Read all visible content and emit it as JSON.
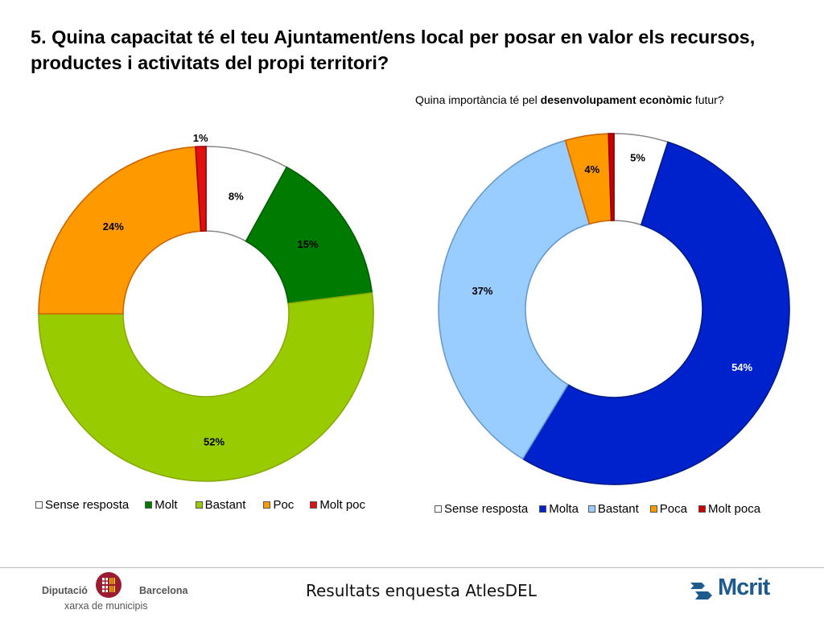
{
  "title": "5. Quina capacitat té el teu Ajuntament/ens local per posar en valor els recursos, productes i activitats del propi territori?",
  "subtitle": {
    "prefix": "Quina importància té pel ",
    "bold": "desenvolupament econòmic",
    "suffix": " futur?"
  },
  "chart_data": [
    {
      "type": "pie",
      "donut": true,
      "title": "",
      "categories": [
        "Sense resposta",
        "Molt",
        "Bastant",
        "Poc",
        "Molt poc"
      ],
      "values": [
        8,
        15,
        52,
        24,
        1
      ],
      "labels": [
        "8%",
        "15%",
        "52%",
        "24%",
        "1%"
      ],
      "colors": [
        "#ffffff",
        "#007a00",
        "#99cc00",
        "#ff9900",
        "#e01010"
      ],
      "legend_position": "bottom"
    },
    {
      "type": "pie",
      "donut": true,
      "title": "Quina importància té pel desenvolupament econòmic futur?",
      "categories": [
        "Sense resposta",
        "Molta",
        "Bastant",
        "Poca",
        "Molt poca"
      ],
      "values": [
        5,
        54,
        37,
        4,
        0.5
      ],
      "labels": [
        "5%",
        "54%",
        "37%",
        "4%",
        ""
      ],
      "colors": [
        "#ffffff",
        "#0022cc",
        "#99ccff",
        "#ff9900",
        "#cc0000"
      ],
      "legend_position": "bottom"
    }
  ],
  "footer": {
    "center_text": "Resultats enquesta AtlesDEL",
    "left_logo": {
      "word1": "Diputació",
      "word2": "Barcelona",
      "sub": "xarxa de municipis"
    },
    "right_logo": {
      "text": "Mcrit"
    }
  }
}
